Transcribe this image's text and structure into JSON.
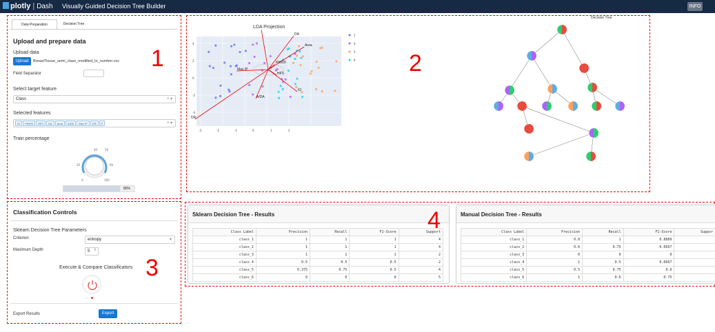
{
  "header": {
    "logo_text": "plotly",
    "logo_sub": "Dash",
    "title": "Visually Guided Decision Tree Builder",
    "info_label": "INFO"
  },
  "annotations": {
    "n1": "1",
    "n2": "2",
    "n3": "3",
    "n4": "4"
  },
  "prep": {
    "tabs": [
      "Data Preparation",
      "Decision Tree"
    ],
    "heading": "Upload and prepare data",
    "upload_data_label": "Upload data",
    "upload_button": "Upload",
    "file_name": "BreastTissue_semi_class_modified_to_number.csv",
    "field_sep_label": "Field Separator",
    "field_sep_value": "",
    "target_label": "Select target feature",
    "target_value": "Class",
    "features_label": "Selected features",
    "features": [
      "IO",
      "PA500",
      "HFS",
      "DA",
      "Area",
      "A/DA",
      "Max IP",
      "DR",
      "P"
    ],
    "train_label": "Train percentage",
    "knob_ticks": [
      "40",
      "50",
      "60",
      "20",
      "0",
      "100"
    ],
    "train_value": "80%",
    "train_fraction": 0.8
  },
  "lda": {
    "title": "LDA Projection",
    "yticks": [
      "4",
      "2",
      "0",
      "-2",
      "-4"
    ],
    "xticks": [
      "-3",
      "-2",
      "-1",
      "0",
      "1",
      "2"
    ],
    "vectors": [
      "P",
      "DA",
      "Area",
      "PA500",
      "HFS",
      "Max IP",
      "A/DA",
      "IO",
      "DR"
    ],
    "legend": [
      "1",
      "4",
      "5",
      "6"
    ],
    "legend_colors": [
      "#636efa",
      "#ab63fa",
      "#ffa15a",
      "#19d3f3"
    ]
  },
  "tree": {
    "title": "Decision Tree"
  },
  "controls": {
    "heading": "Classification Controls",
    "params_label": "Sklearn Decision Tree Parameters",
    "criterion_label": "Criterion",
    "criterion_value": "entropy",
    "depth_label": "Maximum Depth",
    "depth_value": "5",
    "execute_label": "Execute & Compare Classificators",
    "export_label": "Export Results",
    "export_button": "Export"
  },
  "sklearn": {
    "heading": "Sklearn Decision Tree - Results",
    "columns": [
      "Class Label",
      "Precision",
      "Recall",
      "F1-Score",
      "Support"
    ],
    "rows": [
      [
        "class_1",
        "1",
        "1",
        "1",
        "4"
      ],
      [
        "class_2",
        "1",
        "1",
        "1",
        "4"
      ],
      [
        "class_3",
        "1",
        "1",
        "1",
        "2"
      ],
      [
        "class_4",
        "0.5",
        "0.5",
        "0.5",
        "2"
      ],
      [
        "class_5",
        "0.375",
        "0.75",
        "0.5",
        "4"
      ],
      [
        "class_6",
        "0",
        "0",
        "0",
        "5"
      ]
    ]
  },
  "manual": {
    "heading": "Manual Decision Tree - Results",
    "columns": [
      "Class Label",
      "Precision",
      "Recall",
      "F1-Score",
      "Suppor"
    ],
    "rows": [
      [
        "class_1",
        "0.8",
        "1",
        "0.8889",
        ""
      ],
      [
        "class_2",
        "0.6",
        "0.75",
        "0.6667",
        ""
      ],
      [
        "class_3",
        "0",
        "0",
        "0",
        ""
      ],
      [
        "class_4",
        "1",
        "0.5",
        "0.6667",
        ""
      ],
      [
        "class_5",
        "0.5",
        "0.75",
        "0.6",
        ""
      ],
      [
        "class_6",
        "1",
        "0.6",
        "0.75",
        ""
      ]
    ]
  }
}
